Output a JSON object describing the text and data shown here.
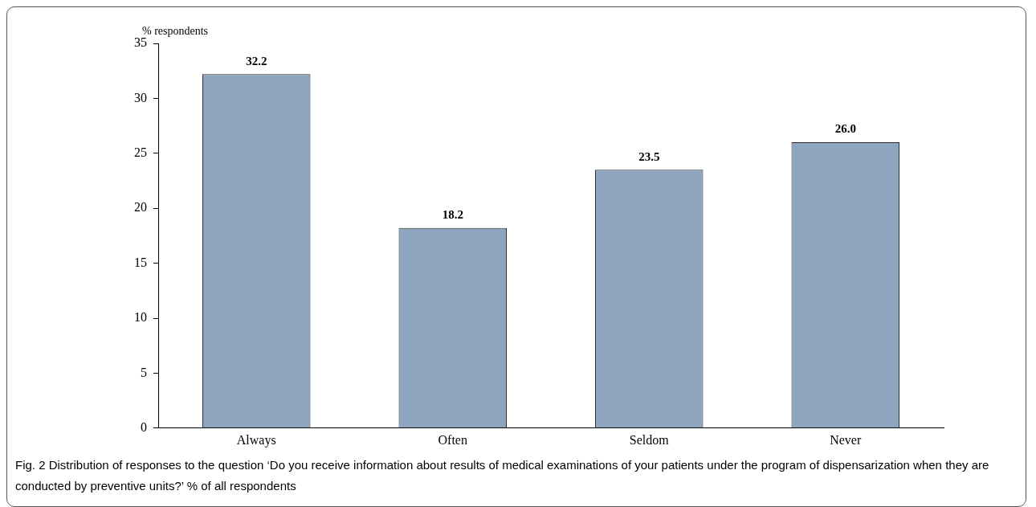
{
  "chart_data": {
    "type": "bar",
    "ylabel": "% respondents",
    "categories": [
      "Always",
      "Often",
      "Seldom",
      "Never"
    ],
    "values": [
      32.2,
      18.2,
      23.5,
      26.0
    ],
    "value_labels": [
      "32.2",
      "18.2",
      "23.5",
      "26.0"
    ],
    "color": "#8ea5bf",
    "ylim": [
      0,
      35
    ],
    "yticks": [
      0,
      5,
      10,
      15,
      20,
      25,
      30,
      35
    ],
    "grid": false,
    "legend": false,
    "annotations": [
      "Fig. 2  Distribution of responses to the question ‘Do you receive information about results of medical examinations of your patients under the program of dispensarization when they are conducted by preventive units?’ % of all respondents"
    ]
  }
}
